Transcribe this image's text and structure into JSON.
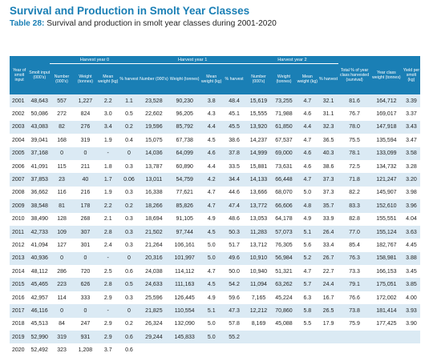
{
  "title": "Survival and Production in Smolt Year Classes",
  "subtitle_label": "Table 28:",
  "subtitle_text": " Survival and production in smolt year classes during 2001-2020",
  "groups": {
    "hy0": "Harvest year 0",
    "hy1": "Harvest year 1",
    "hy2": "Harvest year 2"
  },
  "columns": {
    "year": "Year of smolt input",
    "smolt_input": "Smolt input (000's)",
    "hy0_number": "Number (000's)",
    "hy0_weight": "Weight (tonnes)",
    "hy0_mean": "Mean weight (kg)",
    "hy0_pct": "% harvest",
    "hy1_number": "Number (000's)",
    "hy1_weight": "Weight (tonnes)",
    "hy1_mean": "Mean weight (kg)",
    "hy1_pct": "% harvest",
    "hy2_number": "Number (000's)",
    "hy2_weight": "Weight (tonnes)",
    "hy2_mean": "Mean weight (kg)",
    "hy2_pct": "% harvest",
    "total_pct": "Total % of year class harvested (survival)",
    "yc_weight": "Year class weight (tonnes)",
    "yield": "Yield per smolt (kg)"
  },
  "rows": [
    [
      "2001",
      "48,643",
      "557",
      "1,227",
      "2.2",
      "1.1",
      "23,528",
      "90,230",
      "3.8",
      "48.4",
      "15,619",
      "73,255",
      "4.7",
      "32.1",
      "81.6",
      "164,712",
      "3.39"
    ],
    [
      "2002",
      "50,086",
      "272",
      "824",
      "3.0",
      "0.5",
      "22,602",
      "96,205",
      "4.3",
      "45.1",
      "15,555",
      "71,988",
      "4.6",
      "31.1",
      "76.7",
      "169,017",
      "3.37"
    ],
    [
      "2003",
      "43,083",
      "82",
      "276",
      "3.4",
      "0.2",
      "19,596",
      "85,792",
      "4.4",
      "45.5",
      "13,920",
      "61,850",
      "4.4",
      "32.3",
      "78.0",
      "147,918",
      "3.43"
    ],
    [
      "2004",
      "39,041",
      "168",
      "319",
      "1.9",
      "0.4",
      "15,075",
      "67,738",
      "4.5",
      "38.6",
      "14,237",
      "67,537",
      "4.7",
      "36.5",
      "75.5",
      "135,594",
      "3.47"
    ],
    [
      "2005",
      "37,168",
      "0",
      "0",
      "-",
      "0",
      "14,036",
      "64,099",
      "4.6",
      "37.8",
      "14,999",
      "69,000",
      "4.6",
      "40.3",
      "78.1",
      "133,099",
      "3.58"
    ],
    [
      "2006",
      "41,091",
      "115",
      "211",
      "1.8",
      "0.3",
      "13,787",
      "60,890",
      "4.4",
      "33.5",
      "15,881",
      "73,631",
      "4.6",
      "38.6",
      "72.5",
      "134,732",
      "3.28"
    ],
    [
      "2007",
      "37,853",
      "23",
      "40",
      "1.7",
      "0.06",
      "13,011",
      "54,759",
      "4.2",
      "34.4",
      "14,133",
      "66,448",
      "4.7",
      "37.3",
      "71.8",
      "121,247",
      "3.20"
    ],
    [
      "2008",
      "36,662",
      "116",
      "216",
      "1.9",
      "0.3",
      "16,338",
      "77,621",
      "4.7",
      "44.6",
      "13,666",
      "68,070",
      "5.0",
      "37.3",
      "82.2",
      "145,907",
      "3.98"
    ],
    [
      "2009",
      "38,548",
      "81",
      "178",
      "2.2",
      "0.2",
      "18,266",
      "85,826",
      "4.7",
      "47.4",
      "13,772",
      "66,606",
      "4.8",
      "35.7",
      "83.3",
      "152,610",
      "3.96"
    ],
    [
      "2010",
      "38,490",
      "128",
      "268",
      "2.1",
      "0.3",
      "18,694",
      "91,105",
      "4.9",
      "48.6",
      "13,053",
      "64,178",
      "4.9",
      "33.9",
      "82.8",
      "155,551",
      "4.04"
    ],
    [
      "2011",
      "42,733",
      "109",
      "307",
      "2.8",
      "0.3",
      "21,502",
      "97,744",
      "4.5",
      "50.3",
      "11,283",
      "57,073",
      "5.1",
      "26.4",
      "77.0",
      "155,124",
      "3.63"
    ],
    [
      "2012",
      "41,094",
      "127",
      "301",
      "2.4",
      "0.3",
      "21,264",
      "106,161",
      "5.0",
      "51.7",
      "13,712",
      "76,305",
      "5.6",
      "33.4",
      "85.4",
      "182,767",
      "4.45"
    ],
    [
      "2013",
      "40,936",
      "0",
      "0",
      "-",
      "0",
      "20,316",
      "101,997",
      "5.0",
      "49.6",
      "10,910",
      "56,984",
      "5.2",
      "26.7",
      "76.3",
      "158,981",
      "3.88"
    ],
    [
      "2014",
      "48,112",
      "286",
      "720",
      "2.5",
      "0.6",
      "24,038",
      "114,112",
      "4.7",
      "50.0",
      "10,940",
      "51,321",
      "4.7",
      "22.7",
      "73.3",
      "166,153",
      "3.45"
    ],
    [
      "2015",
      "45,465",
      "223",
      "626",
      "2.8",
      "0.5",
      "24,633",
      "111,163",
      "4.5",
      "54.2",
      "11,094",
      "63,262",
      "5.7",
      "24.4",
      "79.1",
      "175,051",
      "3.85"
    ],
    [
      "2016",
      "42,957",
      "114",
      "333",
      "2.9",
      "0.3",
      "25,596",
      "126,445",
      "4.9",
      "59.6",
      "7,165",
      "45,224",
      "6.3",
      "16.7",
      "76.6",
      "172,002",
      "4.00"
    ],
    [
      "2017",
      "46,116",
      "0",
      "0",
      "-",
      "0",
      "21,825",
      "110,554",
      "5.1",
      "47.3",
      "12,212",
      "70,860",
      "5.8",
      "26.5",
      "73.8",
      "181,414",
      "3.93"
    ],
    [
      "2018",
      "45,513",
      "84",
      "247",
      "2.9",
      "0.2",
      "26,324",
      "132,090",
      "5.0",
      "57.8",
      "8,169",
      "45,088",
      "5.5",
      "17.9",
      "75.9",
      "177,425",
      "3.90"
    ],
    [
      "2019",
      "52,990",
      "319",
      "931",
      "2.9",
      "0.6",
      "29,244",
      "145,833",
      "5.0",
      "55.2",
      "",
      "",
      "",
      "",
      "",
      "",
      ""
    ],
    [
      "2020",
      "52,492",
      "323",
      "1,208",
      "3.7",
      "0.6",
      "",
      "",
      "",
      "",
      "",
      "",
      "",
      "",
      "",
      "",
      ""
    ]
  ]
}
